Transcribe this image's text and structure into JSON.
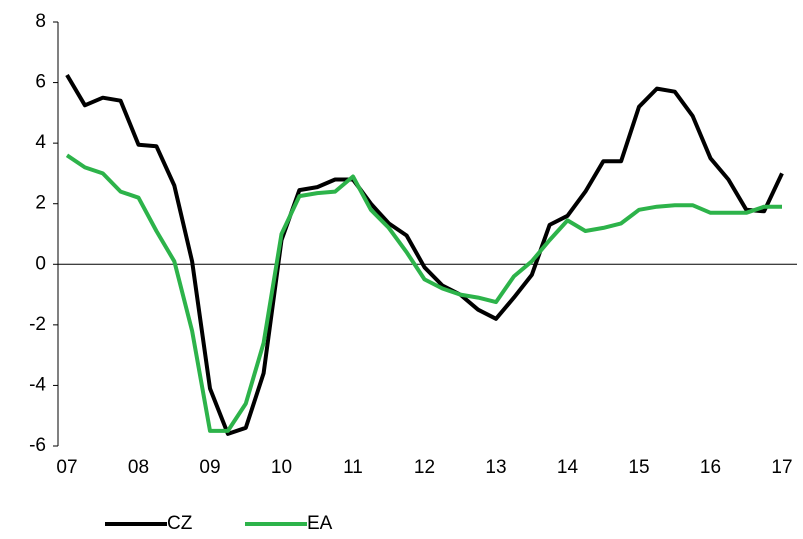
{
  "chart_data": {
    "type": "line",
    "x": [
      7,
      7.25,
      7.5,
      7.75,
      8,
      8.25,
      8.5,
      8.75,
      9,
      9.25,
      9.5,
      9.75,
      10,
      10.25,
      10.5,
      10.75,
      11,
      11.25,
      11.5,
      11.75,
      12,
      12.25,
      12.5,
      12.75,
      13,
      13.25,
      13.5,
      13.75,
      14,
      14.25,
      14.5,
      14.75,
      15,
      15.25,
      15.5,
      15.75,
      16,
      16.25,
      16.5,
      16.75,
      17
    ],
    "series": [
      {
        "name": "CZ",
        "color": "#000000",
        "values": [
          6.25,
          5.25,
          5.5,
          5.4,
          3.95,
          3.9,
          2.6,
          0.1,
          -4.1,
          -5.6,
          -5.4,
          -3.6,
          0.8,
          2.45,
          2.55,
          2.8,
          2.8,
          2.0,
          1.35,
          0.95,
          -0.1,
          -0.7,
          -1.0,
          -1.5,
          -1.8,
          -1.1,
          -0.35,
          1.3,
          1.6,
          2.4,
          3.4,
          3.4,
          5.2,
          5.8,
          5.7,
          4.9,
          3.5,
          2.8,
          1.8,
          1.75,
          3.0
        ]
      },
      {
        "name": "EA",
        "color": "#2db34a",
        "values": [
          3.6,
          3.2,
          3.0,
          2.4,
          2.2,
          1.1,
          0.1,
          -2.2,
          -5.5,
          -5.5,
          -4.6,
          -2.6,
          1.0,
          2.25,
          2.35,
          2.4,
          2.9,
          1.8,
          1.2,
          0.4,
          -0.5,
          -0.8,
          -1.0,
          -1.1,
          -1.25,
          -0.4,
          0.1,
          0.8,
          1.45,
          1.1,
          1.2,
          1.35,
          1.8,
          1.9,
          1.95,
          1.95,
          1.7,
          1.7,
          1.7,
          1.9,
          1.9
        ]
      }
    ],
    "xlim": [
      7,
      17
    ],
    "xticks": [
      {
        "value": 7,
        "label": "07"
      },
      {
        "value": 8,
        "label": "08"
      },
      {
        "value": 9,
        "label": "09"
      },
      10,
      11,
      12,
      13,
      14,
      15,
      16,
      17
    ],
    "ylim": [
      -6,
      8
    ],
    "yticks": [
      -6,
      -4,
      -2,
      0,
      2,
      4,
      6,
      8
    ],
    "legend": "bottom-left"
  }
}
